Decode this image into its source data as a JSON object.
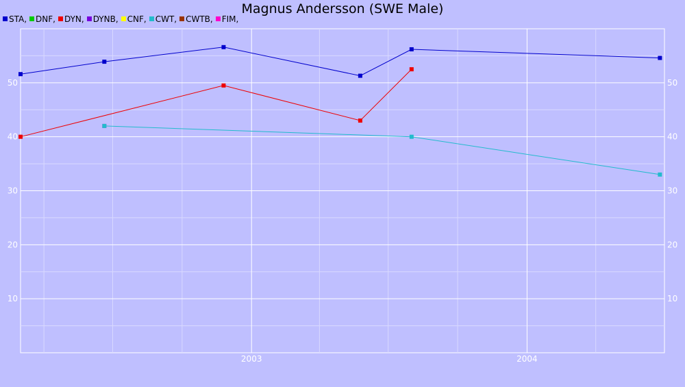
{
  "chart_data": {
    "type": "line",
    "title": "Magnus Andersson (SWE Male)",
    "legend": [
      {
        "name": "STA",
        "label": "STA,",
        "color": "#0000cc"
      },
      {
        "name": "DNF",
        "label": "DNF,",
        "color": "#00cc00"
      },
      {
        "name": "DYN",
        "label": "DYN,",
        "color": "#ee0000"
      },
      {
        "name": "DYNB",
        "label": "DYNB,",
        "color": "#7700dd"
      },
      {
        "name": "CNF",
        "label": "CNF,",
        "color": "#ffff00"
      },
      {
        "name": "CWT",
        "label": "CWT,",
        "color": "#22bbcc"
      },
      {
        "name": "CWTB",
        "label": "CWTB,",
        "color": "#993300"
      },
      {
        "name": "FIM",
        "label": "FIM,",
        "color": "#ff00cc"
      }
    ],
    "xlim": [
      "2002-03-01",
      "2004-07-01"
    ],
    "ylim": [
      0,
      60
    ],
    "x_ticks": [
      {
        "date": "2003-01-01",
        "label": "2003"
      },
      {
        "date": "2004-01-01",
        "label": "2004"
      }
    ],
    "y_ticks": [
      10,
      20,
      30,
      40,
      50
    ],
    "grid": true,
    "legend_position": "top-left",
    "series": [
      {
        "name": "STA",
        "color": "#0000cc",
        "points": [
          [
            "2002-03-01",
            51.6
          ],
          [
            "2002-06-20",
            53.9
          ],
          [
            "2002-11-25",
            56.6
          ],
          [
            "2003-05-25",
            51.3
          ],
          [
            "2003-08-01",
            56.2
          ],
          [
            "2004-06-25",
            54.6
          ]
        ]
      },
      {
        "name": "DYN",
        "color": "#ee0000",
        "points": [
          [
            "2002-03-01",
            40.0
          ],
          [
            "2002-11-25",
            49.5
          ],
          [
            "2003-05-25",
            43.0
          ],
          [
            "2003-08-01",
            52.5
          ]
        ]
      },
      {
        "name": "FIM",
        "color": "#ff00cc",
        "points": [
          [
            "2002-06-20",
            42.0
          ]
        ]
      },
      {
        "name": "CWT",
        "color": "#22bbcc",
        "points": [
          [
            "2002-06-20",
            42.0
          ],
          [
            "2003-08-01",
            40.0
          ],
          [
            "2004-06-25",
            33.0
          ]
        ]
      }
    ]
  }
}
